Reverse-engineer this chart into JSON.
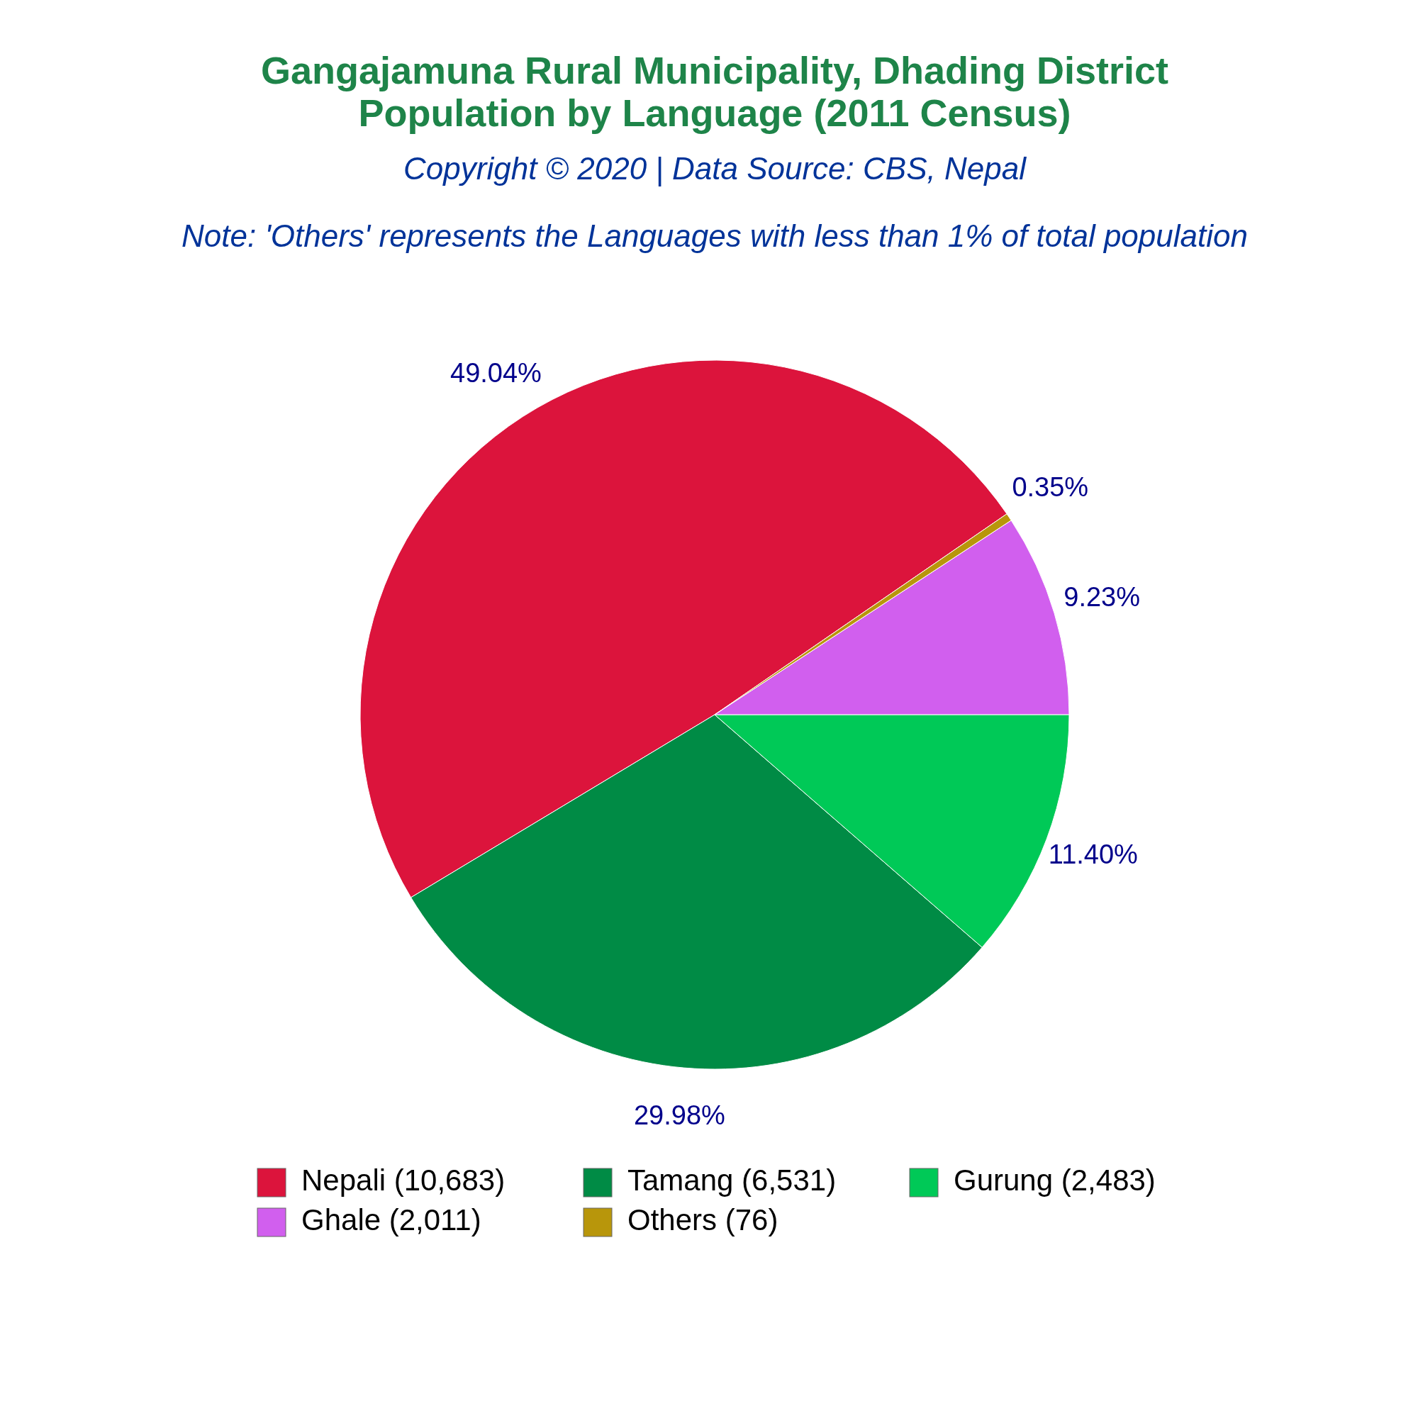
{
  "chart_data": {
    "type": "pie",
    "title": "Gangajamuna Rural Municipality, Dhading District\nPopulation by Language (2011 Census)",
    "subtitle": "Copyright © 2020 | Data Source: CBS, Nepal",
    "annotations": [
      "Note: 'Others' represents the Languages with less than 1% of total population"
    ],
    "categories": [
      "Nepali (10,683)",
      "Tamang (6,531)",
      "Gurung (2,483)",
      "Ghale (2,011)",
      "Others (76)"
    ],
    "values": [
      49.04,
      29.98,
      11.4,
      9.23,
      0.35
    ],
    "value_labels": [
      "49.04%",
      "29.98%",
      "11.40%",
      "9.23%",
      "0.35%"
    ],
    "colors": [
      "#dc143c",
      "#008b45",
      "#00c957",
      "#d15fee",
      "#b8960b"
    ],
    "legend": "bottom"
  }
}
